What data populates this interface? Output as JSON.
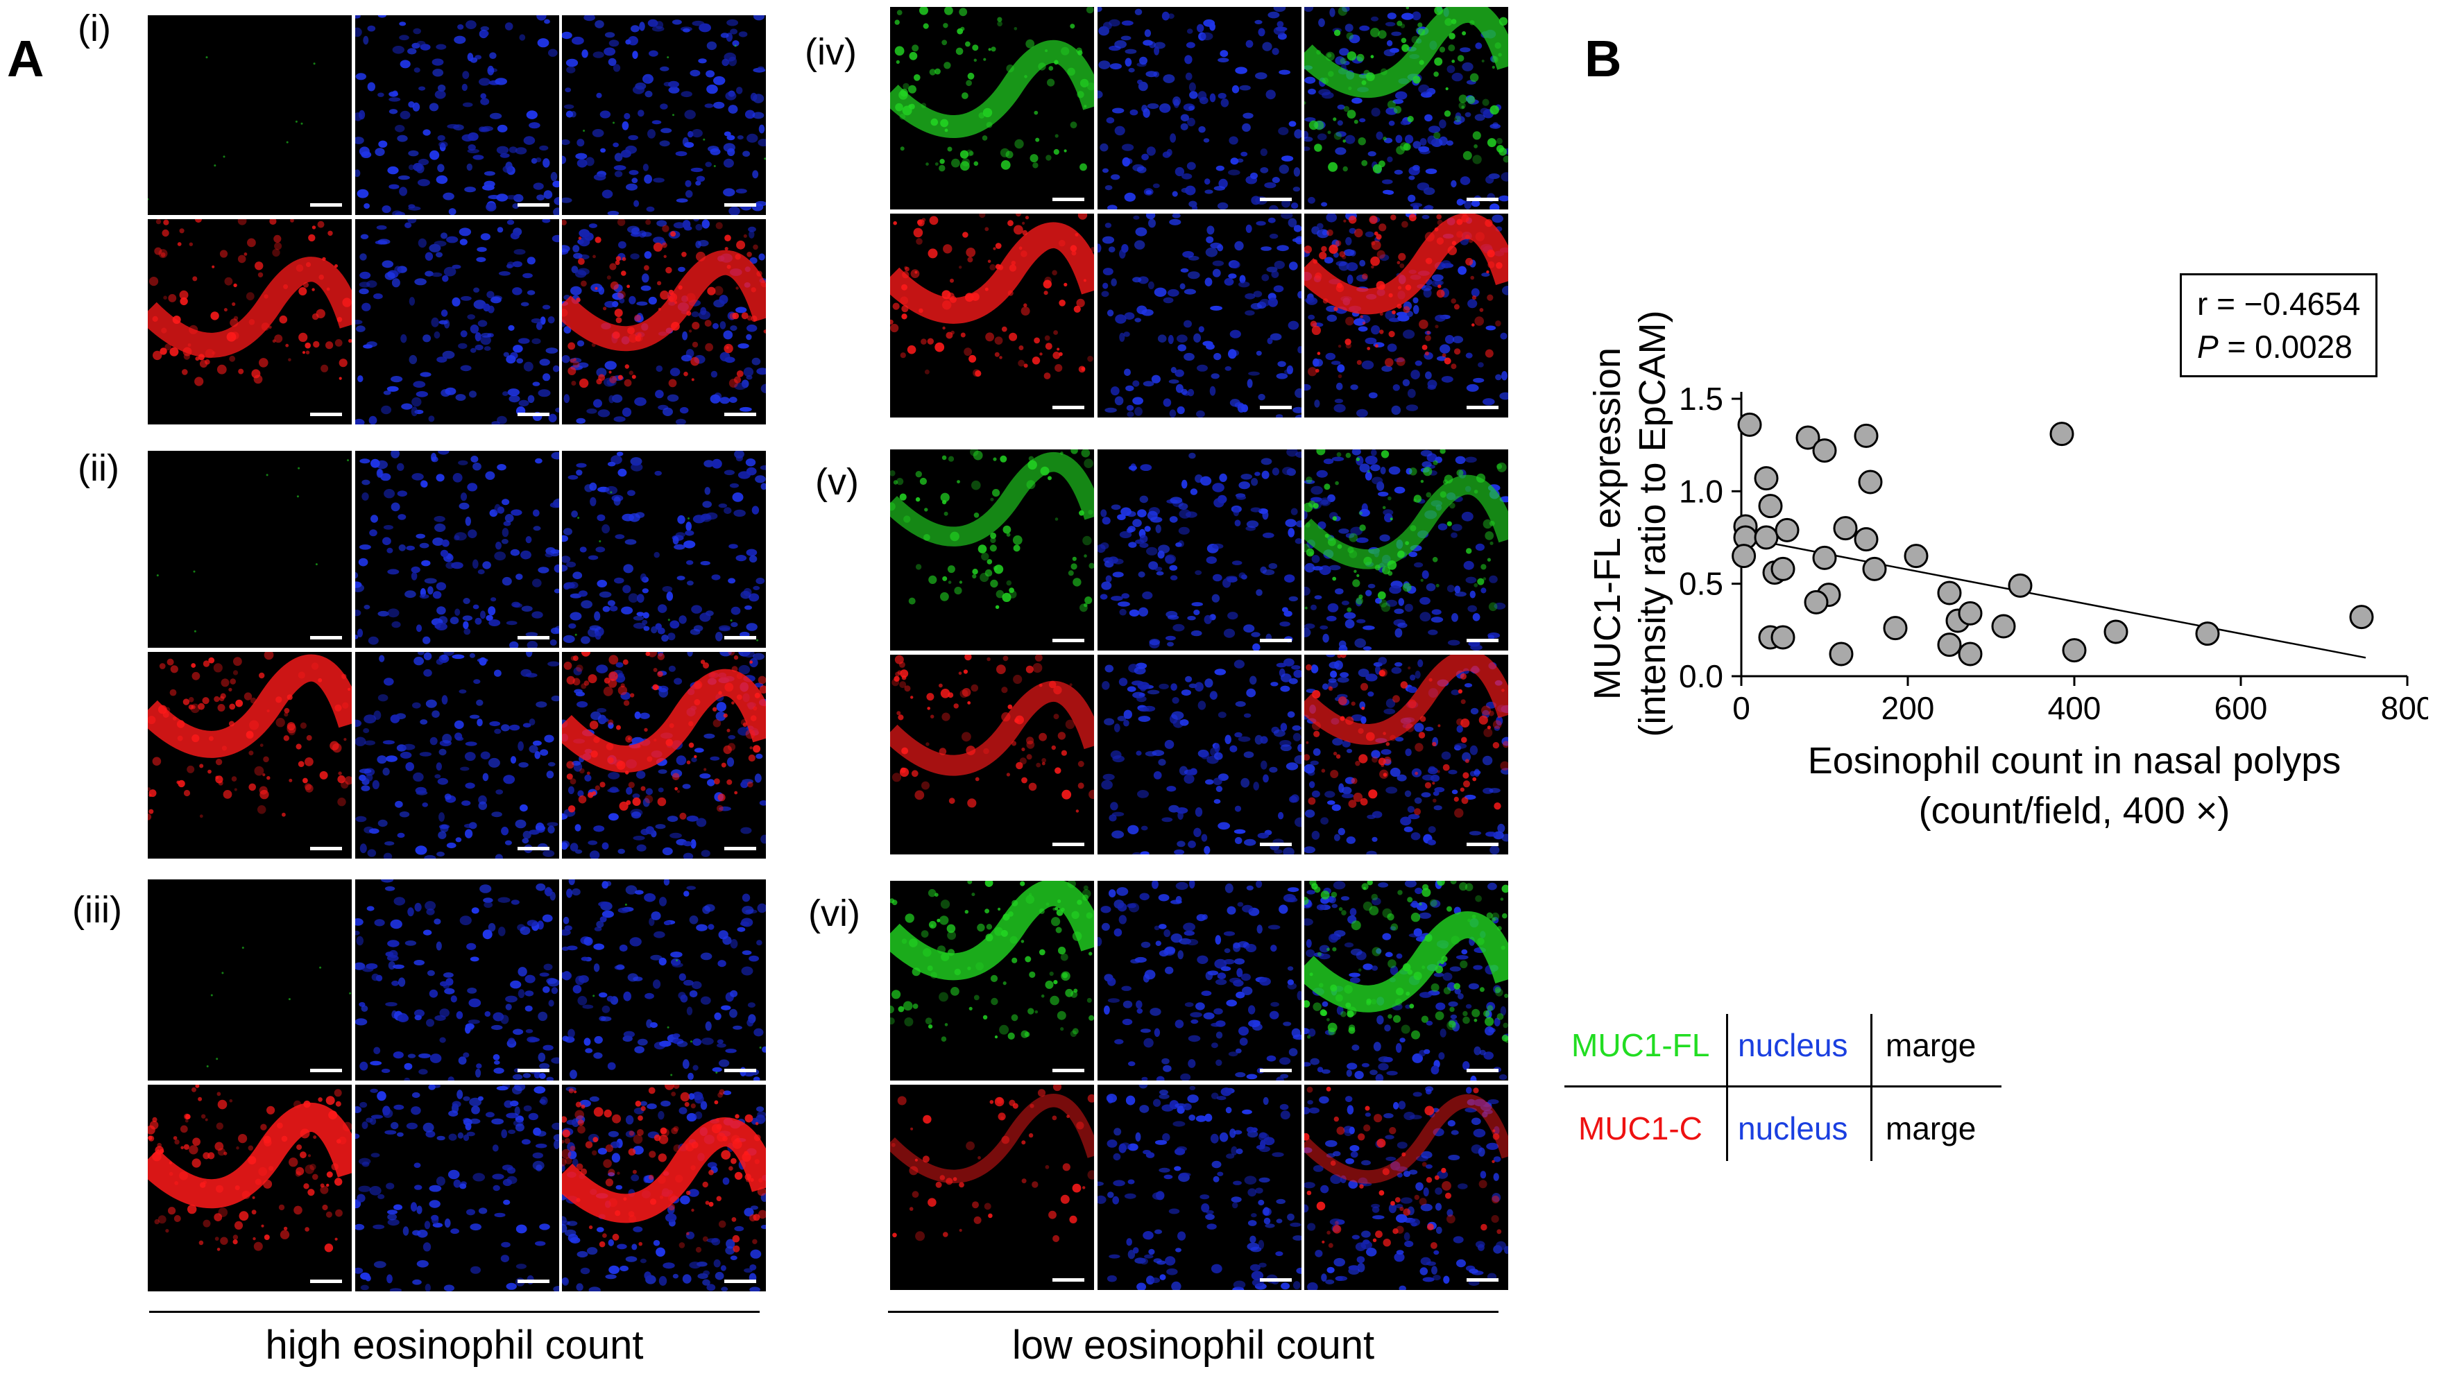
{
  "panel_a": {
    "letter": "A",
    "sub_labels": [
      "(i)",
      "(ii)",
      "(iii)",
      "(iv)",
      "(v)",
      "(vi)"
    ],
    "group_labels": [
      "high eosinophil count",
      "low eosinophil count"
    ]
  },
  "panel_b": {
    "letter": "B"
  },
  "legend": {
    "rows": [
      {
        "stain": "MUC1-FL",
        "stain_color": "#22dd22",
        "nucleus": "nucleus",
        "nucleus_color": "#1a3fe0",
        "merge": "marge"
      },
      {
        "stain": "MUC1-C",
        "stain_color": "#ee1111",
        "nucleus": "nucleus",
        "nucleus_color": "#1a3fe0",
        "merge": "marge"
      }
    ]
  },
  "chart_data": {
    "type": "scatter",
    "title": "",
    "xlabel_line1": "Eosinophil count in nasal polyps",
    "xlabel_line2": "(count/field, 400 ×)",
    "ylabel_line1": "MUC1-FL expression",
    "ylabel_line2": "(intensity ratio to EpCAM)",
    "xlim": [
      0,
      800
    ],
    "ylim": [
      0,
      1.5
    ],
    "x_ticks": [
      0,
      200,
      400,
      600,
      800
    ],
    "y_ticks": [
      0.0,
      0.5,
      1.0,
      1.5
    ],
    "y_tick_labels": [
      "0.0",
      "0.5",
      "1.0",
      "1.5"
    ],
    "annotation_r": "r = −0.4654",
    "annotation_p_symbol": "P",
    "annotation_p_value": " = 0.0028",
    "regression": {
      "x": [
        0,
        750
      ],
      "y": [
        0.75,
        0.1
      ]
    },
    "points": [
      {
        "x": 10,
        "y": 1.36
      },
      {
        "x": 5,
        "y": 0.81
      },
      {
        "x": 5,
        "y": 0.75
      },
      {
        "x": 3,
        "y": 0.65
      },
      {
        "x": 30,
        "y": 1.07
      },
      {
        "x": 35,
        "y": 0.92
      },
      {
        "x": 30,
        "y": 0.75
      },
      {
        "x": 40,
        "y": 0.56
      },
      {
        "x": 50,
        "y": 0.58
      },
      {
        "x": 55,
        "y": 0.79
      },
      {
        "x": 35,
        "y": 0.21
      },
      {
        "x": 50,
        "y": 0.21
      },
      {
        "x": 80,
        "y": 1.29
      },
      {
        "x": 100,
        "y": 1.22
      },
      {
        "x": 100,
        "y": 0.64
      },
      {
        "x": 105,
        "y": 0.44
      },
      {
        "x": 90,
        "y": 0.4
      },
      {
        "x": 125,
        "y": 0.8
      },
      {
        "x": 120,
        "y": 0.12
      },
      {
        "x": 150,
        "y": 1.3
      },
      {
        "x": 155,
        "y": 1.05
      },
      {
        "x": 150,
        "y": 0.74
      },
      {
        "x": 160,
        "y": 0.58
      },
      {
        "x": 185,
        "y": 0.26
      },
      {
        "x": 210,
        "y": 0.65
      },
      {
        "x": 250,
        "y": 0.45
      },
      {
        "x": 260,
        "y": 0.3
      },
      {
        "x": 275,
        "y": 0.34
      },
      {
        "x": 250,
        "y": 0.17
      },
      {
        "x": 275,
        "y": 0.12
      },
      {
        "x": 315,
        "y": 0.27
      },
      {
        "x": 335,
        "y": 0.49
      },
      {
        "x": 385,
        "y": 1.31
      },
      {
        "x": 400,
        "y": 0.14
      },
      {
        "x": 450,
        "y": 0.24
      },
      {
        "x": 560,
        "y": 0.23
      },
      {
        "x": 745,
        "y": 0.32
      }
    ]
  }
}
